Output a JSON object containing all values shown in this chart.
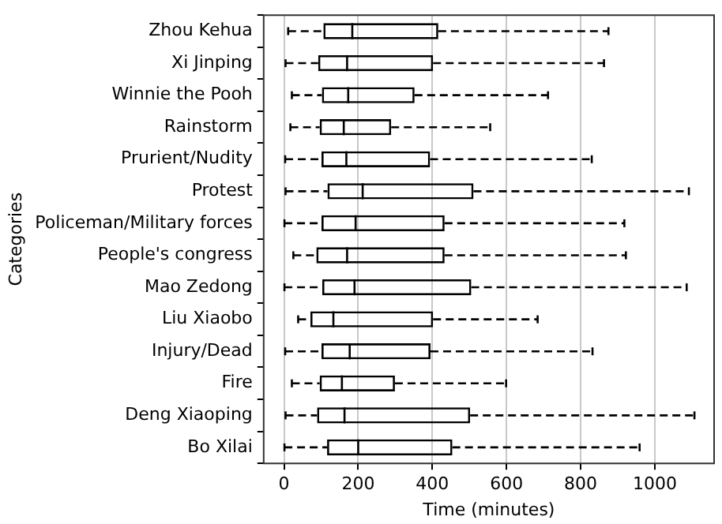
{
  "chart_data": {
    "type": "box",
    "orientation": "horizontal",
    "xlabel": "Time (minutes)",
    "ylabel": "Categories",
    "categories": [
      "Zhou Kehua",
      "Xi Jinping",
      "Winnie the Pooh",
      "Rainstorm",
      "Prurient/Nudity",
      "Protest",
      "Policeman/Military forces",
      "People's congress",
      "Mao Zedong",
      "Liu Xiaobo",
      "Injury/Dead",
      "Fire",
      "Deng Xiaoping",
      "Bo Xilai"
    ],
    "boxes": [
      {
        "low": 11,
        "q1": 106,
        "median": 184,
        "q3": 416,
        "high": 875
      },
      {
        "low": 4,
        "q1": 92,
        "median": 170,
        "q3": 402,
        "high": 863
      },
      {
        "low": 21,
        "q1": 102,
        "median": 173,
        "q3": 352,
        "high": 712
      },
      {
        "low": 17,
        "q1": 96,
        "median": 161,
        "q3": 289,
        "high": 556
      },
      {
        "low": 3,
        "q1": 101,
        "median": 168,
        "q3": 394,
        "high": 830
      },
      {
        "low": 4,
        "q1": 117,
        "median": 212,
        "q3": 511,
        "high": 1092
      },
      {
        "low": 1,
        "q1": 101,
        "median": 193,
        "q3": 433,
        "high": 918
      },
      {
        "low": 25,
        "q1": 87,
        "median": 170,
        "q3": 433,
        "high": 922
      },
      {
        "low": 1,
        "q1": 103,
        "median": 190,
        "q3": 505,
        "high": 1086
      },
      {
        "low": 38,
        "q1": 71,
        "median": 133,
        "q3": 402,
        "high": 684
      },
      {
        "low": 3,
        "q1": 101,
        "median": 177,
        "q3": 395,
        "high": 832
      },
      {
        "low": 21,
        "q1": 96,
        "median": 156,
        "q3": 299,
        "high": 599
      },
      {
        "low": 4,
        "q1": 89,
        "median": 163,
        "q3": 502,
        "high": 1107
      },
      {
        "low": 1,
        "q1": 116,
        "median": 200,
        "q3": 454,
        "high": 959
      }
    ],
    "color": "#000000",
    "line_style": "dashed",
    "xlim": [
      -55,
      1160
    ],
    "xticks": [
      0,
      200,
      400,
      600,
      800,
      1000
    ],
    "grid": "x"
  }
}
